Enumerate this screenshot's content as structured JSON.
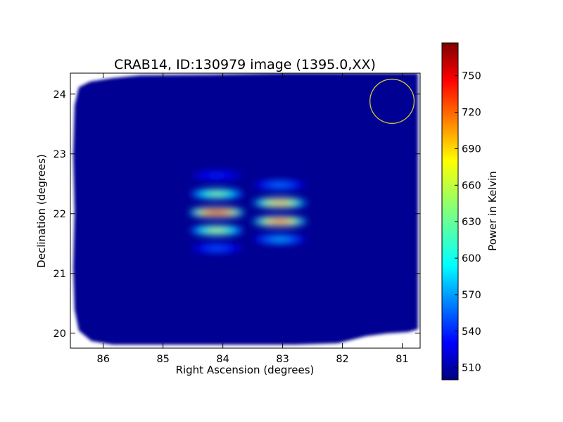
{
  "chart_data": {
    "type": "heatmap",
    "title": "CRAB14, ID:130979 image (1395.0,XX)",
    "xlabel": "Right Ascension (degrees)",
    "ylabel": "Declination (degrees)",
    "xlim": [
      86.55,
      80.7
    ],
    "ylim": [
      19.75,
      24.35
    ],
    "x_ticks": [
      86,
      85,
      84,
      83,
      82,
      81
    ],
    "y_ticks": [
      20,
      21,
      22,
      23,
      24
    ],
    "colorbar": {
      "label": "Power in Kelvin",
      "colormap": "jet",
      "range": [
        500,
        777
      ],
      "ticks": [
        510,
        540,
        570,
        600,
        630,
        660,
        690,
        720,
        750
      ]
    },
    "background_level_K": 505,
    "peaks": [
      {
        "ra": 84.1,
        "dec": 22.02,
        "value": 775
      },
      {
        "ra": 84.1,
        "dec": 21.72,
        "value": 665
      },
      {
        "ra": 84.1,
        "dec": 22.33,
        "value": 650
      },
      {
        "ra": 84.1,
        "dec": 21.42,
        "value": 560
      },
      {
        "ra": 84.1,
        "dec": 22.64,
        "value": 545
      },
      {
        "ra": 83.05,
        "dec": 21.87,
        "value": 735
      },
      {
        "ra": 83.05,
        "dec": 22.18,
        "value": 710
      },
      {
        "ra": 83.05,
        "dec": 21.57,
        "value": 585
      },
      {
        "ra": 83.05,
        "dec": 22.48,
        "value": 570
      }
    ],
    "beam_circle": {
      "ra": 81.17,
      "dec": 23.88,
      "radius_deg": 0.37,
      "color": "#d4c73a"
    },
    "grid": false,
    "legend": "none"
  }
}
